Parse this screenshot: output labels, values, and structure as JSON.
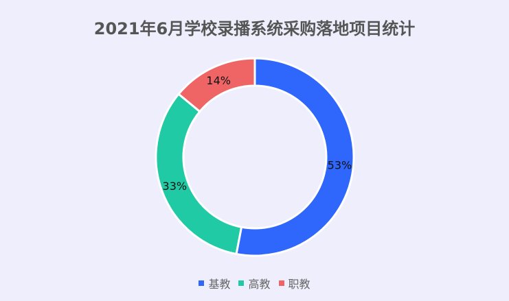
{
  "chart_data": {
    "type": "pie",
    "donut": true,
    "title": "2021年6月学校录播系统采购落地项目统计",
    "categories": [
      "基教",
      "高教",
      "职教"
    ],
    "values": [
      53,
      33,
      14
    ],
    "labels": [
      "53%",
      "33%",
      "14%"
    ],
    "colors": [
      "#2f66fb",
      "#1fcaa5",
      "#ef6565"
    ],
    "legend_position": "bottom"
  }
}
